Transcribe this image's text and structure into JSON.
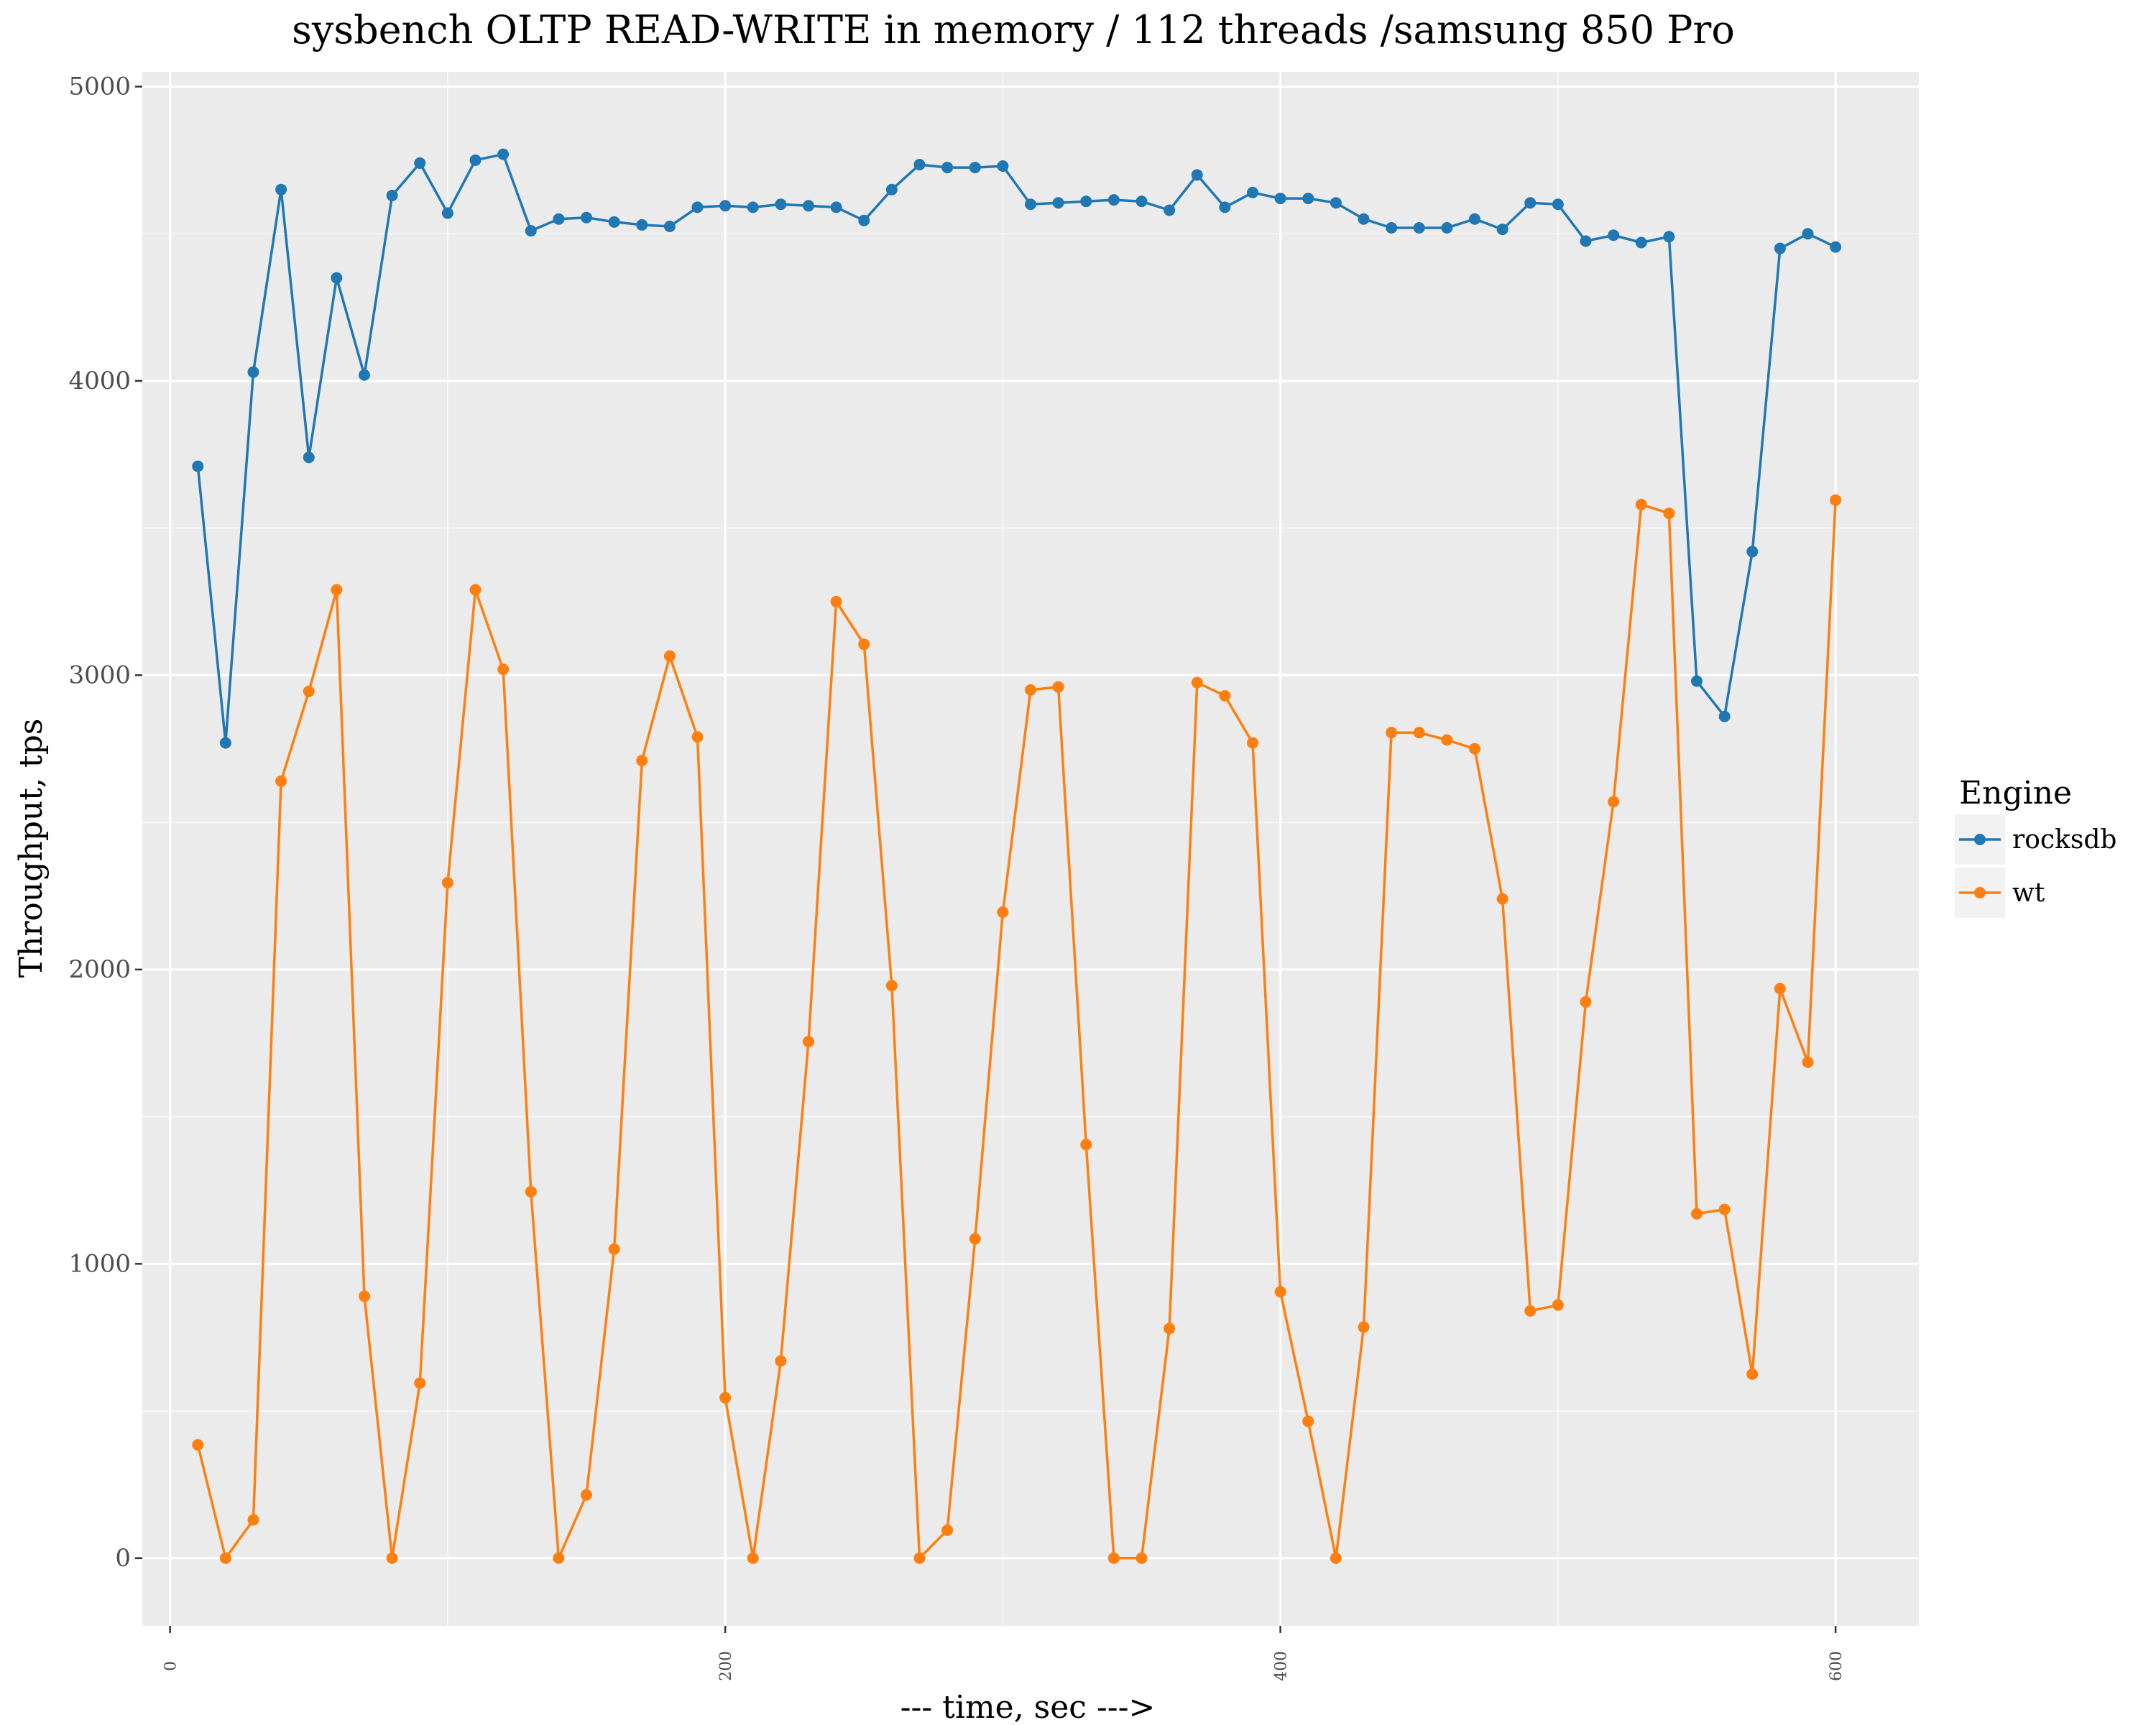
{
  "chart_data": {
    "type": "line",
    "title": "sysbench OLTP READ-WRITE in memory / 112 threads /samsung 850 Pro",
    "xlabel": "--- time, sec --->",
    "ylabel": "Throughput, tps",
    "xlim": [
      -10,
      630
    ],
    "ylim": [
      -230,
      5050
    ],
    "x_ticks": [
      0,
      200,
      400,
      600
    ],
    "x_tick_labels": [
      "0",
      "200",
      "400",
      "600"
    ],
    "x_minor_ticks": [
      100,
      300,
      500
    ],
    "y_ticks": [
      0,
      1000,
      2000,
      3000,
      4000,
      5000
    ],
    "y_tick_labels": [
      "0",
      "1000",
      "2000",
      "3000",
      "4000",
      "5000"
    ],
    "y_minor_ticks": [
      500,
      1500,
      2500,
      3500,
      4500
    ],
    "grid": true,
    "background": "#ebebeb",
    "legend": {
      "title": "Engine",
      "position": "right"
    },
    "x": [
      10,
      20,
      30,
      40,
      50,
      60,
      70,
      80,
      90,
      100,
      110,
      120,
      130,
      140,
      150,
      160,
      170,
      180,
      190,
      200,
      210,
      220,
      230,
      240,
      250,
      260,
      270,
      280,
      290,
      300,
      310,
      320,
      330,
      340,
      350,
      360,
      370,
      380,
      390,
      400,
      410,
      420,
      430,
      440,
      450,
      460,
      470,
      480,
      490,
      500,
      510,
      520,
      530,
      540,
      550,
      560,
      570,
      580,
      590,
      600
    ],
    "series": [
      {
        "name": "rocksdb",
        "color": "#1f77b4",
        "values": [
          3710,
          2770,
          4030,
          4650,
          3740,
          4350,
          4020,
          4630,
          4740,
          4570,
          4750,
          4770,
          4510,
          4550,
          4555,
          4540,
          4530,
          4525,
          4590,
          4595,
          4590,
          4600,
          4595,
          4590,
          4545,
          4650,
          4735,
          4725,
          4725,
          4730,
          4600,
          4605,
          4610,
          4615,
          4610,
          4580,
          4700,
          4590,
          4640,
          4620,
          4620,
          4605,
          4550,
          4520,
          4520,
          4520,
          4550,
          4515,
          4605,
          4600,
          4475,
          4495,
          4470,
          4490,
          2980,
          2860,
          3420,
          4450,
          4500,
          4455
        ]
      },
      {
        "name": "wt",
        "color": "#ff7f0e",
        "values": [
          385,
          0,
          130,
          2640,
          2945,
          3290,
          890,
          0,
          595,
          2295,
          3290,
          3020,
          1245,
          0,
          215,
          1050,
          2710,
          3065,
          2790,
          545,
          0,
          670,
          1755,
          3250,
          3105,
          1945,
          0,
          95,
          1085,
          2195,
          2950,
          2960,
          1405,
          0,
          0,
          780,
          2975,
          2930,
          2770,
          905,
          465,
          0,
          785,
          2805,
          2805,
          2780,
          2750,
          2240,
          840,
          860,
          1890,
          2570,
          3580,
          3550,
          1170,
          1185,
          625,
          1935,
          1685,
          3595
        ]
      }
    ]
  }
}
